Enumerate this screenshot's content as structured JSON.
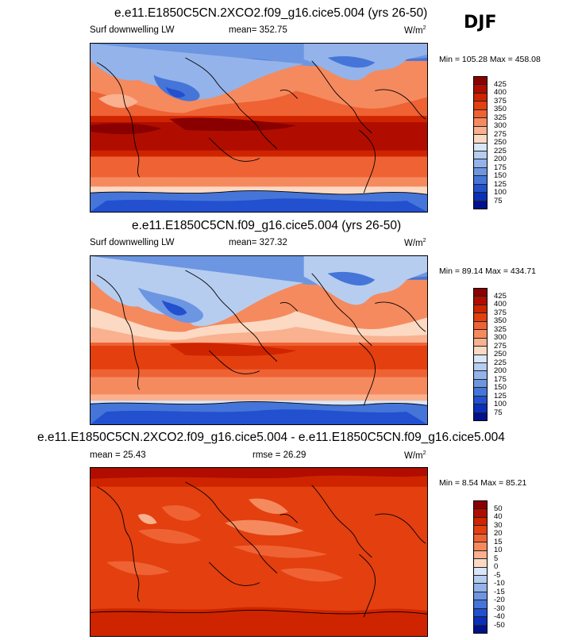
{
  "season": "DJF",
  "panels": [
    {
      "title": "e.e11.E1850C5CN.2XCO2.f09_g16.cice5.004 (yrs 26-50)",
      "left_label": "Surf downwelling LW",
      "center_label": "mean= 352.75",
      "units": "W/m",
      "units_exp": "2",
      "minmax": "Min = 105.28 Max = 458.08",
      "colorbar_levels": [
        "425",
        "400",
        "375",
        "350",
        "325",
        "300",
        "275",
        "250",
        "225",
        "200",
        "175",
        "150",
        "125",
        "100",
        "75"
      ],
      "colorbar_colors": [
        "#8a0000",
        "#b00d00",
        "#cf2400",
        "#e33f0f",
        "#ef6234",
        "#f58a5e",
        "#f9b18f",
        "#fcd9c2",
        "#d8e6f7",
        "#b6cdf0",
        "#93b3ea",
        "#6d96e2",
        "#4575d8",
        "#2250cf",
        "#0a2fb8",
        "#00118c"
      ],
      "palette": "absolute"
    },
    {
      "title": "e.e11.E1850C5CN.f09_g16.cice5.004 (yrs 26-50)",
      "left_label": "Surf downwelling LW",
      "center_label": "mean= 327.32",
      "units": "W/m",
      "units_exp": "2",
      "minmax": "Min = 89.14 Max = 434.71",
      "colorbar_levels": [
        "425",
        "400",
        "375",
        "350",
        "325",
        "300",
        "275",
        "250",
        "225",
        "200",
        "175",
        "150",
        "125",
        "100",
        "75"
      ],
      "colorbar_colors": [
        "#8a0000",
        "#b00d00",
        "#cf2400",
        "#e33f0f",
        "#ef6234",
        "#f58a5e",
        "#f9b18f",
        "#fcd9c2",
        "#d8e6f7",
        "#b6cdf0",
        "#93b3ea",
        "#6d96e2",
        "#4575d8",
        "#2250cf",
        "#0a2fb8",
        "#00118c"
      ],
      "palette": "absolute"
    },
    {
      "title": "e.e11.E1850C5CN.2XCO2.f09_g16.cice5.004 - e.e11.E1850C5CN.f09_g16.cice5.004",
      "left_label": "mean = 25.43",
      "center_label": "rmse = 26.29",
      "units": "W/m",
      "units_exp": "2",
      "minmax": "Min = 8.54 Max = 85.21",
      "colorbar_levels": [
        "50",
        "40",
        "30",
        "20",
        "15",
        "10",
        "5",
        "0",
        "-5",
        "-10",
        "-15",
        "-20",
        "-30",
        "-40",
        "-50"
      ],
      "colorbar_colors": [
        "#8a0000",
        "#b00d00",
        "#cf2400",
        "#e33f0f",
        "#ef6234",
        "#f58a5e",
        "#f9b18f",
        "#fcd9c2",
        "#d8e6f7",
        "#b6cdf0",
        "#93b3ea",
        "#6d96e2",
        "#4575d8",
        "#2250cf",
        "#0a2fb8",
        "#00118c"
      ],
      "palette": "difference"
    }
  ]
}
